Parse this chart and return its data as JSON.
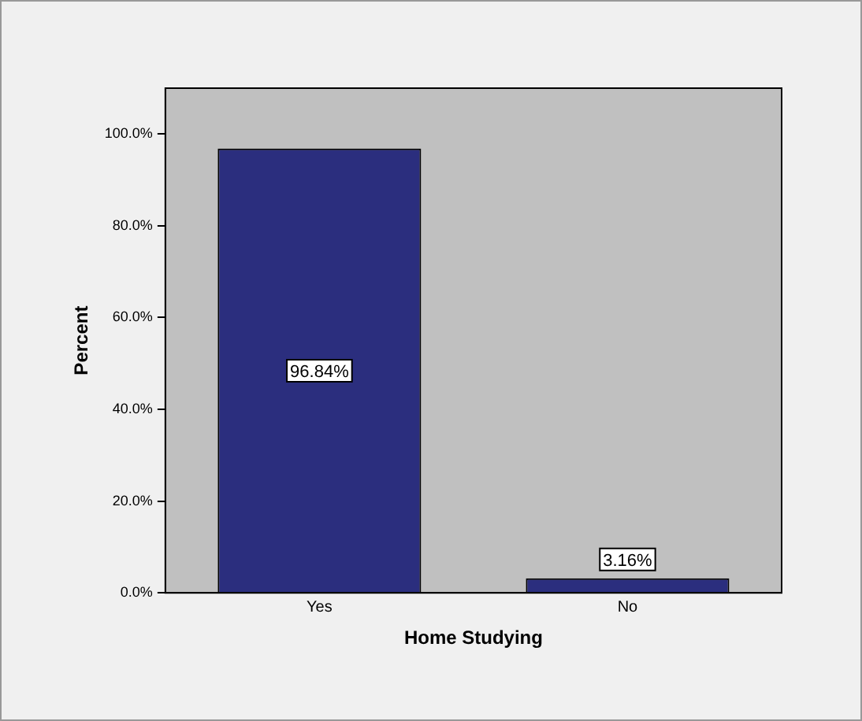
{
  "chart_data": {
    "type": "bar",
    "xlabel": "Home Studying",
    "ylabel": "Percent",
    "categories": [
      "Yes",
      "No"
    ],
    "values": [
      96.84,
      3.16
    ],
    "value_labels": [
      "96.84%",
      "3.16%"
    ],
    "color": "#2b2e7e",
    "ylim": [
      0,
      110
    ],
    "yticks": [
      {
        "value": 0,
        "label": "0.0%"
      },
      {
        "value": 20,
        "label": "20.0%"
      },
      {
        "value": 40,
        "label": "40.0%"
      },
      {
        "value": 60,
        "label": "60.0%"
      },
      {
        "value": 80,
        "label": "80.0%"
      },
      {
        "value": 100,
        "label": "100.0%"
      }
    ],
    "grid": false,
    "legend": false
  }
}
